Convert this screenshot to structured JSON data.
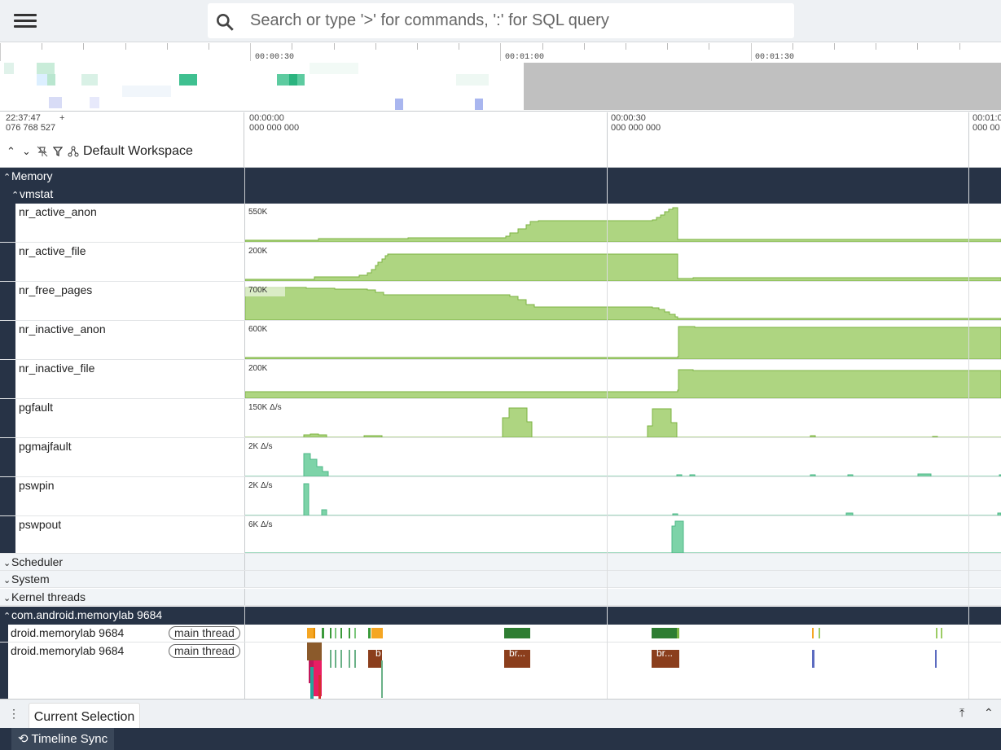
{
  "search": {
    "placeholder": "Search or type '>' for commands, ':' for SQL query"
  },
  "overview": {
    "labels": [
      "00:00:30",
      "00:01:00",
      "00:01:30"
    ]
  },
  "time_axis": {
    "origin_time": "22:37:47",
    "origin_plus": "+",
    "origin_ns": "076 768 527",
    "marks": [
      {
        "t": "00:00:00",
        "ns": "000 000 000"
      },
      {
        "t": "00:00:30",
        "ns": "000 000 000"
      },
      {
        "t": "00:01:0",
        "ns": "000 00"
      }
    ]
  },
  "toolbar": {
    "workspace": "Default Workspace"
  },
  "groups": {
    "memory": "Memory",
    "vmstat": "vmstat",
    "scheduler": "Scheduler",
    "system": "System",
    "kernel": "Kernel threads",
    "process": "com.android.memorylab 9684"
  },
  "tracks": [
    {
      "name": "nr_active_anon",
      "scale": "550K"
    },
    {
      "name": "nr_active_file",
      "scale": "200K"
    },
    {
      "name": "nr_free_pages",
      "scale": "700K"
    },
    {
      "name": "nr_inactive_anon",
      "scale": "600K"
    },
    {
      "name": "nr_inactive_file",
      "scale": "200K"
    },
    {
      "name": "pgfault",
      "scale": "150K Δ/s"
    },
    {
      "name": "pgmajfault",
      "scale": "2K Δ/s"
    },
    {
      "name": "pswpin",
      "scale": "2K Δ/s"
    },
    {
      "name": "pswpout",
      "scale": "6K Δ/s"
    }
  ],
  "threads": [
    {
      "name": "droid.memorylab 9684",
      "tag": "main thread"
    },
    {
      "name": "droid.memorylab 9684",
      "tag": "main thread"
    }
  ],
  "slices": {
    "b": "b",
    "br1": "br...",
    "br2": "br..."
  },
  "bottom": {
    "tab": "Current Selection",
    "sync": "Timeline Sync"
  },
  "colors": {
    "accent": "#273346",
    "counter_fill": "#aed581",
    "counter_stroke": "#7cb342",
    "delta_fill": "#7dd3a8"
  }
}
